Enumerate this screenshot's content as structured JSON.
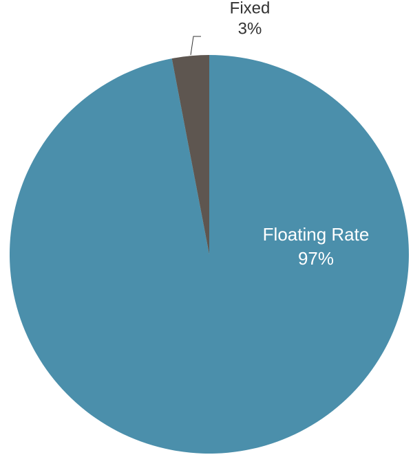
{
  "chart_data": {
    "type": "pie",
    "categories": [
      "Floating Rate",
      "Fixed"
    ],
    "values": [
      97,
      3
    ],
    "value_labels": [
      "97%",
      "3%"
    ],
    "colors": [
      "#4b8fab",
      "#5e5650"
    ]
  }
}
